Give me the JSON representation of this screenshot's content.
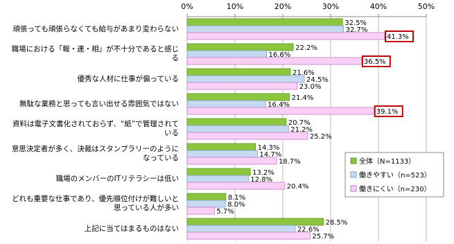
{
  "chart_data": {
    "type": "bar",
    "orientation": "horizontal",
    "categories": [
      "頑張っても頑張らなくても給与があまり変わらない",
      "職場における「報・連・相」が不十分であると感じる",
      "優秀な人材に仕事が偏っている",
      "無駄な業務と思っても言い出せる雰囲気ではない",
      "資料は電子文書化されておらず、“紙”で管理されている",
      "意思決定者が多く、決裁はスタンプラリーのようになっている",
      "職場のメンバーのITリテラシーは低い",
      "どれも重要な仕事であり、優先順位付けが難しいと思っている人が多い",
      "上記に当てはまるものはない"
    ],
    "series": [
      {
        "name": "全体（N=1133）",
        "color": "#8cc63f",
        "values": [
          32.5,
          22.2,
          21.6,
          21.4,
          20.7,
          14.3,
          13.2,
          8.1,
          28.5
        ],
        "value_labels": [
          "32.5%",
          "22.2%",
          "21.6%",
          "21.4%",
          "20.7%",
          "14.3%",
          "13.2%",
          "8.1%",
          "28.5%"
        ]
      },
      {
        "name": "働きやすい（n=523）",
        "color": "#c5d9f1",
        "values": [
          32.7,
          16.6,
          24.5,
          16.4,
          21.2,
          14.7,
          12.8,
          8.0,
          22.6
        ],
        "value_labels": [
          "32.7%",
          "16.6%",
          "24.5%",
          "16.4%",
          "21.2%",
          "14.7%",
          "12.8%",
          "8.0%",
          "22.6%"
        ]
      },
      {
        "name": "働きにくい（n=230）",
        "color": "#fbd0f7",
        "values": [
          41.3,
          36.5,
          23.0,
          39.1,
          25.2,
          18.7,
          20.4,
          5.7,
          25.7
        ],
        "value_labels": [
          "41.3%",
          "36.5%",
          "23.0%",
          "39.1%",
          "25.2%",
          "18.7%",
          "20.4%",
          "5.7%",
          "25.7%"
        ],
        "highlight": [
          true,
          true,
          false,
          true,
          false,
          false,
          false,
          false,
          false
        ]
      }
    ],
    "highlight_color": "#c00000",
    "xlim": [
      0,
      50
    ],
    "xticks": [
      {
        "value": 0,
        "label": "0%"
      },
      {
        "value": 10,
        "label": "10%"
      },
      {
        "value": 20,
        "label": "20%"
      },
      {
        "value": 30,
        "label": "30%"
      },
      {
        "value": 40,
        "label": "40%"
      },
      {
        "value": 50,
        "label": "50%"
      }
    ],
    "grid": true,
    "legend": "bottom-right"
  }
}
